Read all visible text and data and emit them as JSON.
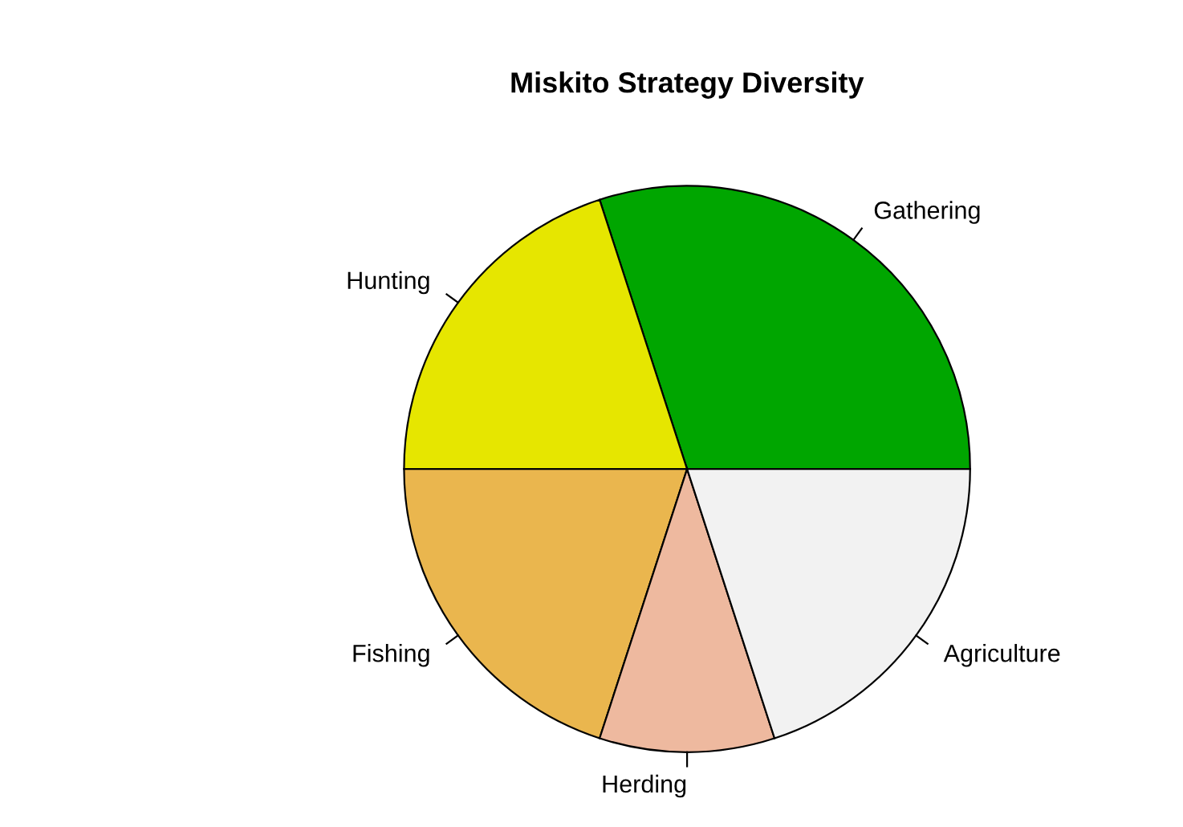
{
  "chart_data": {
    "type": "pie",
    "title": "Miskito Strategy Diversity",
    "categories": [
      "Gathering",
      "Hunting",
      "Fishing",
      "Herding",
      "Agriculture"
    ],
    "values": [
      30,
      20,
      20,
      10,
      20
    ],
    "colors": [
      "#00a600",
      "#e6e600",
      "#eab64e",
      "#eeb99f",
      "#f2f2f2"
    ]
  }
}
